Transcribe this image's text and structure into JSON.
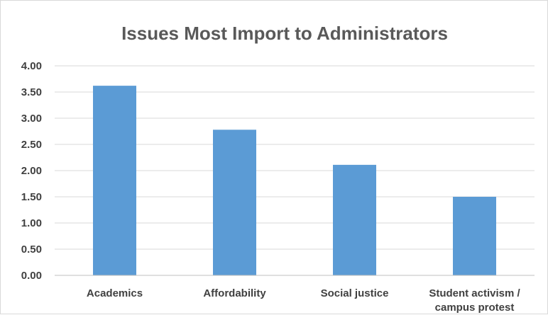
{
  "chart_data": {
    "type": "bar",
    "title": "Issues Most Import to Administrators",
    "categories": [
      [
        "Academics"
      ],
      [
        "Affordability"
      ],
      [
        "Social justice"
      ],
      [
        "Student activism /",
        "campus protest"
      ]
    ],
    "values": [
      3.62,
      2.78,
      2.11,
      1.5
    ],
    "ylim": [
      0,
      4
    ],
    "yticks": [
      "0.00",
      "0.50",
      "1.00",
      "1.50",
      "2.00",
      "2.50",
      "3.00",
      "3.50",
      "4.00"
    ],
    "grid": true,
    "legend": "none",
    "colors": {
      "bar": "#5b9bd5",
      "grid": "#d9d9d9",
      "title": "#595959",
      "text": "#404040"
    }
  }
}
